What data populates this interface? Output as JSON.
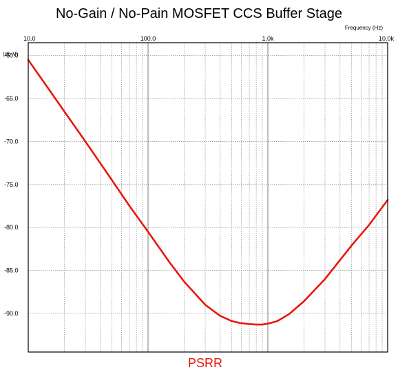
{
  "chart_data": {
    "type": "line",
    "title": "No-Gain / No-Pain MOSFET CCS Buffer Stage",
    "xlabel": "Frequency    (Hz)",
    "ylabel": "(db-V)",
    "x_scale": "log",
    "xlim": [
      10,
      10000
    ],
    "ylim": [
      -94.5,
      -58.5
    ],
    "x_ticks": [
      {
        "value": 10,
        "label": "10.0"
      },
      {
        "value": 100,
        "label": "100.0"
      },
      {
        "value": 1000,
        "label": "1.0k"
      },
      {
        "value": 10000,
        "label": "10.0k"
      }
    ],
    "y_ticks": [
      {
        "value": -60,
        "label": "-60.0"
      },
      {
        "value": -65,
        "label": "-65.0"
      },
      {
        "value": -70,
        "label": "-70.0"
      },
      {
        "value": -75,
        "label": "-75.0"
      },
      {
        "value": -80,
        "label": "-80.0"
      },
      {
        "value": -85,
        "label": "-85.0"
      },
      {
        "value": -90,
        "label": "-90.0"
      }
    ],
    "grid": true,
    "series": [
      {
        "name": "PSRR",
        "color": "#e8160c",
        "x": [
          10,
          15,
          20,
          30,
          50,
          70,
          100,
          150,
          200,
          300,
          400,
          500,
          600,
          700,
          800,
          900,
          1000,
          1200,
          1500,
          2000,
          3000,
          5000,
          7000,
          10000
        ],
        "y": [
          -60.5,
          -64.0,
          -66.5,
          -70.0,
          -74.5,
          -77.5,
          -80.5,
          -84.0,
          -86.3,
          -89.0,
          -90.3,
          -90.9,
          -91.15,
          -91.25,
          -91.3,
          -91.3,
          -91.2,
          -90.9,
          -90.1,
          -88.6,
          -86.0,
          -82.1,
          -79.7,
          -76.8
        ]
      }
    ]
  }
}
